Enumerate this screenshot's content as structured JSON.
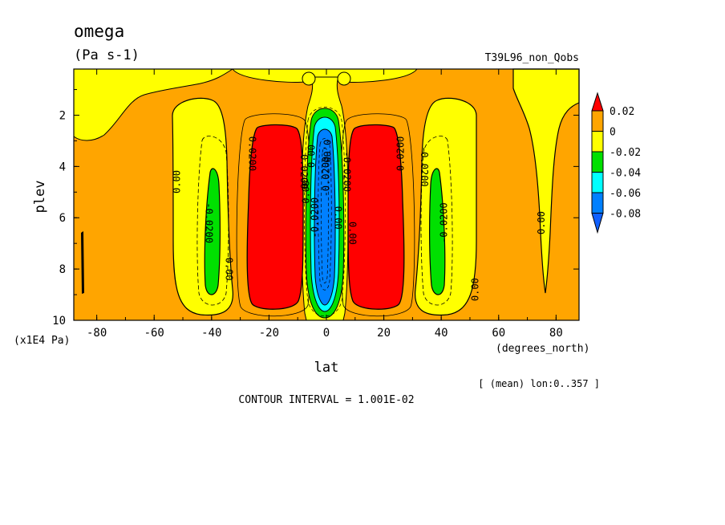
{
  "chart_data": {
    "type": "heatmap",
    "title": "omega",
    "units": "(Pa s-1)",
    "dataset": "T39L96_non_Qobs",
    "xlabel": "lat",
    "x_units": "(degrees_north)",
    "ylabel": "plev",
    "y_units": "(x1E4 Pa)",
    "x_ticks": [
      "-80",
      "-60",
      "-40",
      "-20",
      "0",
      "20",
      "40",
      "60",
      "80"
    ],
    "y_ticks": [
      "2",
      "4",
      "6",
      "8",
      "10"
    ],
    "xlim": [
      -88,
      88
    ],
    "ylim": [
      0.2,
      10
    ],
    "footnote": "[ (mean) lon:0..357 ]",
    "contour_interval": "CONTOUR INTERVAL = 1.001E-02",
    "legend": {
      "labels": [
        "0.02",
        "0",
        "-0.02",
        "-0.04",
        "-0.06",
        "-0.08"
      ],
      "colors": [
        "#ff0000",
        "#ffa500",
        "#ffff00",
        "#00e000",
        "#00ffff",
        "#0080ff",
        "#1060ff"
      ]
    },
    "contour_labels": [
      "0.00",
      "0.0200",
      "0.0200",
      "0.0200",
      "0.00",
      "-0.0200",
      "-0.0200",
      "0.00",
      "0.00",
      "-0.0200",
      "-0.0200",
      "0.00",
      "0.00",
      "0.00",
      "-0.0200",
      "-0.0200",
      "0.00",
      "0.00"
    ],
    "regions": [
      {
        "level": "0 to 0.02",
        "color": "#ffa500",
        "note": "background"
      },
      {
        "level": "> 0.02",
        "lat": [
          -26,
          -6
        ],
        "plev": [
          2.4,
          9.7
        ],
        "color": "#ff0000"
      },
      {
        "level": "> 0.02",
        "lat": [
          6,
          26
        ],
        "plev": [
          2.4,
          9.7
        ],
        "color": "#ff0000"
      },
      {
        "level": "-0.02 to 0",
        "lat": [
          -52,
          -32
        ],
        "plev": [
          1.0,
          9.9
        ],
        "color": "#ffff00"
      },
      {
        "level": "-0.02 to 0",
        "lat": [
          32,
          52
        ],
        "plev": [
          1.0,
          9.9
        ],
        "color": "#ffff00"
      },
      {
        "level": "-0.02 to 0",
        "lat": [
          -10,
          10
        ],
        "plev": [
          0.2,
          10
        ],
        "color": "#ffff00"
      },
      {
        "level": "-0.02 to 0",
        "lat": [
          65,
          88
        ],
        "plev": [
          0.2,
          9.0
        ],
        "color": "#ffff00"
      },
      {
        "level": "-0.04 to -0.02",
        "lat": [
          -43,
          -37
        ],
        "plev": [
          4.2,
          9.1
        ],
        "color": "#00e000"
      },
      {
        "level": "-0.04 to -0.02",
        "lat": [
          37,
          43
        ],
        "plev": [
          4.2,
          9.1
        ],
        "color": "#00e000"
      },
      {
        "level": "< -0.06",
        "lat": [
          -3,
          3
        ],
        "plev": [
          2.5,
          9.6
        ],
        "color": "#0080ff"
      }
    ]
  }
}
